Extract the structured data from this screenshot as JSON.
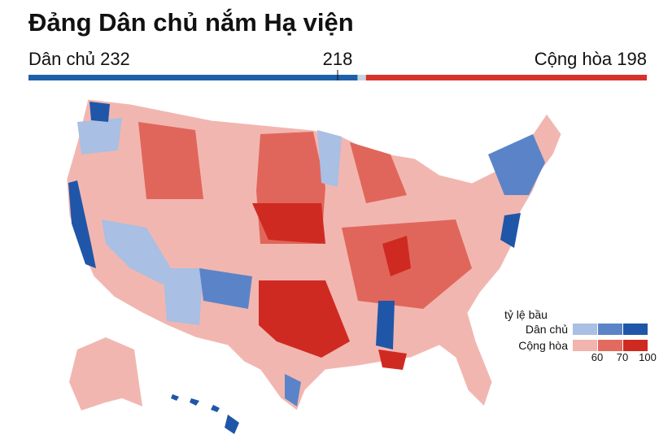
{
  "header": {
    "title": "Đảng Dân chủ nắm Hạ viện"
  },
  "seat_bar": {
    "parties": [
      {
        "name": "Dân chủ",
        "value": 232,
        "color": "#1f5fa8"
      },
      {
        "name": "Cộng hòa",
        "value": 198,
        "color": "#d7322a"
      }
    ],
    "majority": 218
  },
  "legend": {
    "title": "tỷ lệ bầu",
    "rows": [
      {
        "name": "Dân chủ",
        "colors": [
          "#a9bfe3",
          "#5b84c8",
          "#1f56a8"
        ]
      },
      {
        "name": "Cộng hòa",
        "colors": [
          "#f2b4ae",
          "#e36a5e",
          "#cf2a21"
        ]
      }
    ],
    "ticks": [
      60,
      70,
      100
    ]
  }
}
